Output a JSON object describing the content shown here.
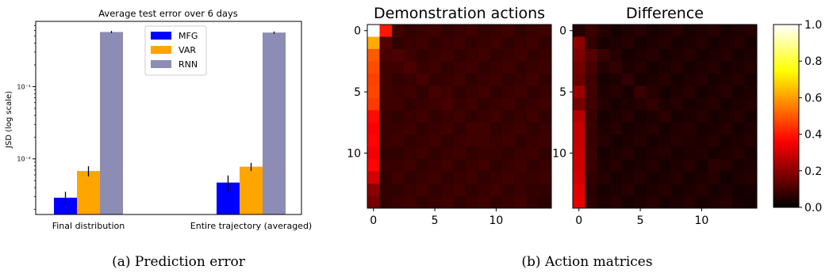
{
  "figure": {
    "caption_a": "(a) Prediction error",
    "caption_b": "(b) Action matrices"
  },
  "chart_data": [
    {
      "type": "bar",
      "title": "Average test error over 6 days",
      "ylabel": "JSD (log scale)",
      "xlabel": "",
      "yscale": "log",
      "ylim": [
        0.0017,
        0.8
      ],
      "yticks": [
        {
          "value": 0.01,
          "label": "10⁻²"
        },
        {
          "value": 0.1,
          "label": "10⁻¹"
        }
      ],
      "categories": [
        "Final distribution",
        "Entire trajectory (averaged)"
      ],
      "series": [
        {
          "name": "MFG",
          "color": "#0000ff",
          "values": [
            0.0029,
            0.0047
          ],
          "errors": [
            0.0006,
            0.0012
          ]
        },
        {
          "name": "VAR",
          "color": "#ffa500",
          "values": [
            0.0068,
            0.0078
          ],
          "errors": [
            0.0011,
            0.001
          ]
        },
        {
          "name": "RNN",
          "color": "#8c8cb4",
          "values": [
            0.57,
            0.56
          ],
          "errors": [
            0.02,
            0.02
          ]
        }
      ],
      "legend": "top-center",
      "grid": false
    },
    {
      "type": "heatmap",
      "title": "Demonstration actions",
      "size": 15,
      "ticks": [
        0,
        5,
        10
      ],
      "colormap": "hot",
      "diagonal": [
        1.0,
        0.12,
        0.11,
        0.11,
        0.1,
        0.1,
        0.1,
        0.09,
        0.09,
        0.09,
        0.08,
        0.08,
        0.08,
        0.07,
        0.06
      ],
      "column0": [
        1.0,
        0.62,
        0.5,
        0.48,
        0.46,
        0.47,
        0.45,
        0.38,
        0.36,
        0.37,
        0.35,
        0.37,
        0.3,
        0.2,
        0.17
      ],
      "column1": [
        0.22,
        0.15,
        0.1,
        0.09,
        0.09,
        0.09,
        0.09,
        0.08,
        0.08,
        0.08,
        0.07,
        0.08,
        0.07,
        0.07,
        0.07
      ],
      "background": 0.07
    },
    {
      "type": "heatmap",
      "title": "Difference",
      "size": 15,
      "ticks": [
        0,
        5,
        10
      ],
      "colormap": "hot",
      "diagonal": [
        0.05,
        0.07,
        0.08,
        0.07,
        0.07,
        0.08,
        0.07,
        0.06,
        0.05,
        0.05,
        0.05,
        0.06,
        0.03,
        0.03,
        0.03
      ],
      "column0": [
        0.05,
        0.2,
        0.18,
        0.16,
        0.15,
        0.22,
        0.17,
        0.26,
        0.28,
        0.28,
        0.29,
        0.29,
        0.3,
        0.32,
        0.33
      ],
      "column1": [
        0.08,
        0.16,
        0.12,
        0.1,
        0.09,
        0.09,
        0.09,
        0.08,
        0.08,
        0.08,
        0.08,
        0.08,
        0.07,
        0.06,
        0.06
      ],
      "background": 0.035
    },
    {
      "type": "colorbar",
      "colormap": "hot",
      "range": [
        0.0,
        1.0
      ],
      "ticks": [
        {
          "value": 0.0,
          "label": "0.0"
        },
        {
          "value": 0.2,
          "label": "0.2"
        },
        {
          "value": 0.4,
          "label": "0.4"
        },
        {
          "value": 0.6,
          "label": "0.6"
        },
        {
          "value": 0.8,
          "label": "0.8"
        },
        {
          "value": 1.0,
          "label": "1.0"
        }
      ]
    }
  ]
}
